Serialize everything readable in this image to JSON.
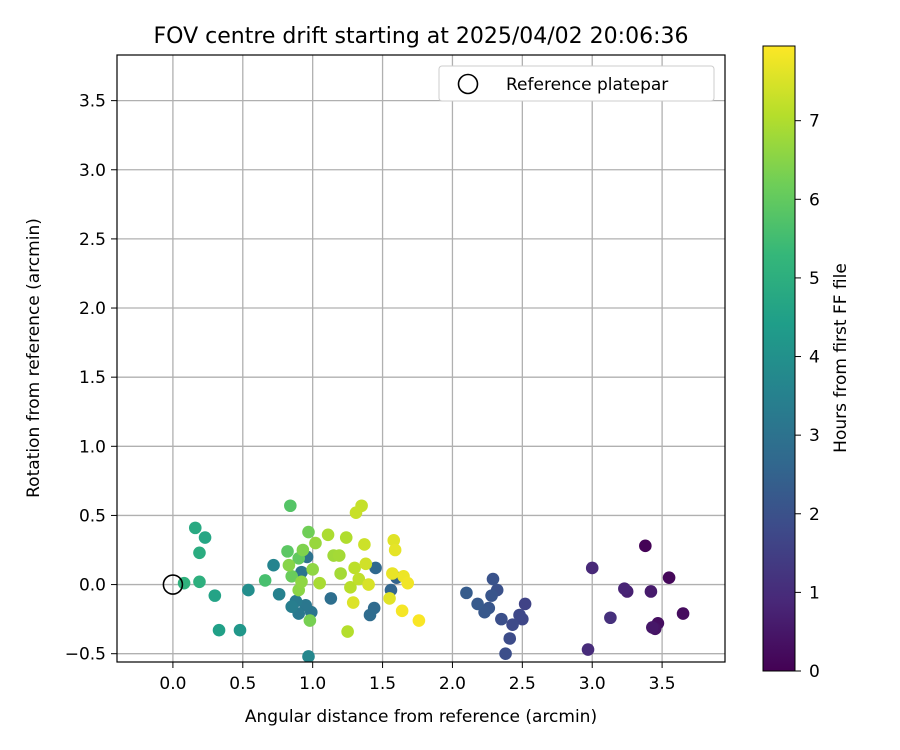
{
  "chart_data": {
    "type": "scatter",
    "title": "FOV centre drift starting at 2025/04/02 20:06:36",
    "xlabel": "Angular distance from reference (arcmin)",
    "ylabel": "Rotation from reference (arcmin)",
    "xlim": [
      -0.4,
      3.95
    ],
    "ylim": [
      -0.56,
      3.83
    ],
    "xticks": [
      0.0,
      0.5,
      1.0,
      1.5,
      2.0,
      2.5,
      3.0,
      3.5
    ],
    "xtick_labels": [
      "0.0",
      "0.5",
      "1.0",
      "1.5",
      "2.0",
      "2.5",
      "3.0",
      "3.5"
    ],
    "yticks": [
      -0.5,
      0.0,
      0.5,
      1.0,
      1.5,
      2.0,
      2.5,
      3.0,
      3.5
    ],
    "ytick_labels": [
      "−0.5",
      "0.0",
      "0.5",
      "1.0",
      "1.5",
      "2.0",
      "2.5",
      "3.0",
      "3.5"
    ],
    "grid": true,
    "legend": {
      "location": "top-right",
      "entries": [
        "Reference platepar"
      ]
    },
    "reference_point": {
      "x": 0.0,
      "y": 0.0
    },
    "colorbar": {
      "label": "Hours from first FF file",
      "range": [
        0,
        7.95
      ],
      "ticks": [
        0,
        1,
        2,
        3,
        4,
        5,
        6,
        7
      ],
      "tick_labels": [
        "0",
        "1",
        "2",
        "3",
        "4",
        "5",
        "6",
        "7"
      ],
      "colormap": "viridis",
      "colormap_stops": [
        "#440154",
        "#482878",
        "#3e4989",
        "#31688e",
        "#26828e",
        "#1f9e89",
        "#35b779",
        "#6ece58",
        "#b5de2b",
        "#fde725"
      ]
    },
    "points": [
      {
        "x": 3.38,
        "y": 0.28,
        "h": 0.05
      },
      {
        "x": 3.55,
        "y": 0.05,
        "h": 0.15
      },
      {
        "x": 3.65,
        "y": -0.21,
        "h": 0.25
      },
      {
        "x": 3.47,
        "y": -0.28,
        "h": 0.3
      },
      {
        "x": 3.45,
        "y": -0.32,
        "h": 0.4
      },
      {
        "x": 3.43,
        "y": -0.31,
        "h": 0.5
      },
      {
        "x": 3.42,
        "y": -0.05,
        "h": 0.6
      },
      {
        "x": 3.25,
        "y": -0.05,
        "h": 0.7
      },
      {
        "x": 3.23,
        "y": -0.03,
        "h": 0.8
      },
      {
        "x": 3.0,
        "y": 0.12,
        "h": 0.9
      },
      {
        "x": 2.97,
        "y": -0.47,
        "h": 1.0
      },
      {
        "x": 3.13,
        "y": -0.24,
        "h": 1.1
      },
      {
        "x": 2.52,
        "y": -0.14,
        "h": 1.6
      },
      {
        "x": 2.5,
        "y": -0.25,
        "h": 1.7
      },
      {
        "x": 2.48,
        "y": -0.22,
        "h": 1.75
      },
      {
        "x": 2.43,
        "y": -0.29,
        "h": 1.8
      },
      {
        "x": 2.41,
        "y": -0.39,
        "h": 1.85
      },
      {
        "x": 2.38,
        "y": -0.5,
        "h": 1.9
      },
      {
        "x": 2.35,
        "y": -0.25,
        "h": 1.95
      },
      {
        "x": 2.32,
        "y": -0.04,
        "h": 2.0
      },
      {
        "x": 2.29,
        "y": 0.04,
        "h": 2.05
      },
      {
        "x": 2.28,
        "y": -0.08,
        "h": 2.1
      },
      {
        "x": 2.26,
        "y": -0.17,
        "h": 2.15
      },
      {
        "x": 2.23,
        "y": -0.2,
        "h": 2.2
      },
      {
        "x": 2.18,
        "y": -0.14,
        "h": 2.25
      },
      {
        "x": 2.1,
        "y": -0.06,
        "h": 2.3
      },
      {
        "x": 1.6,
        "y": 0.05,
        "h": 2.5
      },
      {
        "x": 1.56,
        "y": -0.04,
        "h": 2.6
      },
      {
        "x": 1.45,
        "y": 0.12,
        "h": 2.7
      },
      {
        "x": 1.44,
        "y": -0.17,
        "h": 2.75
      },
      {
        "x": 1.41,
        "y": -0.22,
        "h": 2.8
      },
      {
        "x": 1.13,
        "y": -0.1,
        "h": 2.9
      },
      {
        "x": 0.96,
        "y": 0.2,
        "h": 3.0
      },
      {
        "x": 0.92,
        "y": 0.09,
        "h": 3.05
      },
      {
        "x": 0.99,
        "y": -0.2,
        "h": 3.1
      },
      {
        "x": 0.95,
        "y": -0.15,
        "h": 3.15
      },
      {
        "x": 0.9,
        "y": -0.21,
        "h": 3.2
      },
      {
        "x": 0.88,
        "y": -0.12,
        "h": 3.3
      },
      {
        "x": 0.85,
        "y": -0.16,
        "h": 3.4
      },
      {
        "x": 0.76,
        "y": -0.07,
        "h": 3.5
      },
      {
        "x": 0.72,
        "y": 0.14,
        "h": 3.6
      },
      {
        "x": 0.97,
        "y": -0.52,
        "h": 3.7
      },
      {
        "x": 0.54,
        "y": -0.04,
        "h": 3.9
      },
      {
        "x": 0.48,
        "y": -0.33,
        "h": 4.2
      },
      {
        "x": 0.33,
        "y": -0.33,
        "h": 4.5
      },
      {
        "x": 0.3,
        "y": -0.08,
        "h": 4.6
      },
      {
        "x": 0.23,
        "y": 0.34,
        "h": 4.7
      },
      {
        "x": 0.16,
        "y": 0.41,
        "h": 4.8
      },
      {
        "x": 0.19,
        "y": 0.23,
        "h": 4.9
      },
      {
        "x": 0.19,
        "y": 0.02,
        "h": 5.0
      },
      {
        "x": 0.08,
        "y": 0.01,
        "h": 5.1
      },
      {
        "x": 0.66,
        "y": 0.03,
        "h": 5.6
      },
      {
        "x": 0.84,
        "y": 0.57,
        "h": 5.8
      },
      {
        "x": 0.82,
        "y": 0.24,
        "h": 5.9
      },
      {
        "x": 0.9,
        "y": 0.19,
        "h": 6.0
      },
      {
        "x": 0.85,
        "y": 0.06,
        "h": 6.1
      },
      {
        "x": 0.97,
        "y": 0.38,
        "h": 6.2
      },
      {
        "x": 0.98,
        "y": -0.26,
        "h": 6.3
      },
      {
        "x": 0.93,
        "y": 0.25,
        "h": 6.4
      },
      {
        "x": 0.83,
        "y": 0.14,
        "h": 6.5
      },
      {
        "x": 0.9,
        "y": -0.04,
        "h": 6.55
      },
      {
        "x": 0.92,
        "y": 0.02,
        "h": 6.6
      },
      {
        "x": 1.02,
        "y": 0.3,
        "h": 6.7
      },
      {
        "x": 1.15,
        "y": 0.21,
        "h": 6.8
      },
      {
        "x": 1.19,
        "y": 0.21,
        "h": 6.85
      },
      {
        "x": 1.05,
        "y": 0.01,
        "h": 6.9
      },
      {
        "x": 1.11,
        "y": 0.36,
        "h": 6.95
      },
      {
        "x": 1.24,
        "y": 0.34,
        "h": 7.0
      },
      {
        "x": 1.25,
        "y": -0.34,
        "h": 7.05
      },
      {
        "x": 1.27,
        "y": -0.02,
        "h": 7.1
      },
      {
        "x": 1.3,
        "y": 0.12,
        "h": 7.15
      },
      {
        "x": 1.33,
        "y": 0.04,
        "h": 7.2
      },
      {
        "x": 1.35,
        "y": 0.57,
        "h": 7.25
      },
      {
        "x": 1.31,
        "y": 0.52,
        "h": 7.3
      },
      {
        "x": 1.37,
        "y": 0.29,
        "h": 7.35
      },
      {
        "x": 1.38,
        "y": 0.15,
        "h": 7.4
      },
      {
        "x": 1.0,
        "y": 0.11,
        "h": 6.6
      },
      {
        "x": 1.2,
        "y": 0.08,
        "h": 6.85
      },
      {
        "x": 1.4,
        "y": 0.0,
        "h": 7.5
      },
      {
        "x": 1.29,
        "y": -0.13,
        "h": 7.55
      },
      {
        "x": 1.58,
        "y": 0.32,
        "h": 7.6
      },
      {
        "x": 1.59,
        "y": 0.25,
        "h": 7.65
      },
      {
        "x": 1.57,
        "y": 0.08,
        "h": 7.7
      },
      {
        "x": 1.65,
        "y": 0.06,
        "h": 7.75
      },
      {
        "x": 1.68,
        "y": 0.01,
        "h": 7.8
      },
      {
        "x": 1.64,
        "y": -0.19,
        "h": 7.85
      },
      {
        "x": 1.76,
        "y": -0.26,
        "h": 7.9
      },
      {
        "x": 1.55,
        "y": -0.1,
        "h": 7.6
      }
    ]
  }
}
